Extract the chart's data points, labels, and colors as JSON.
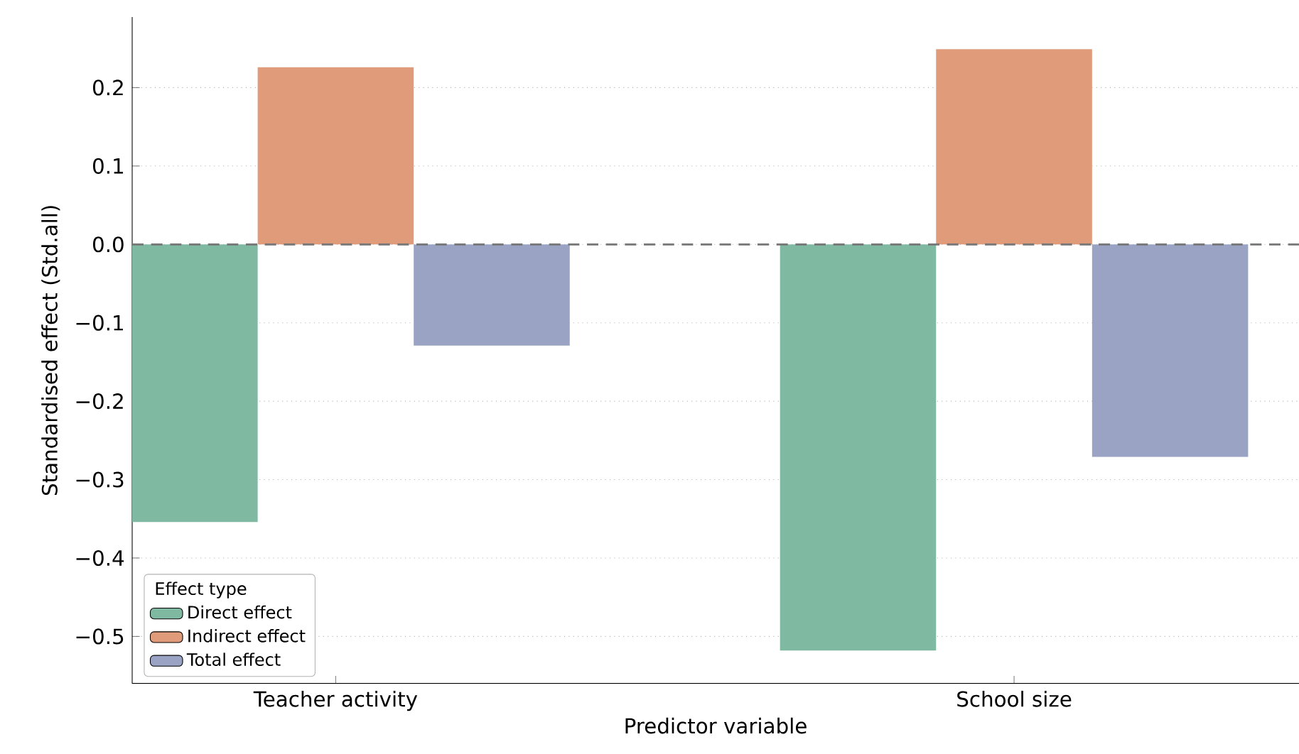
{
  "chart_data": {
    "type": "bar",
    "xlabel": "Predictor variable",
    "ylabel": "Standardised effect (Std.all)",
    "legend_title": "Effect type",
    "categories": [
      "Teacher activity",
      "School size"
    ],
    "series": [
      {
        "name": "Direct effect",
        "color": "#7fb9a2",
        "values": [
          -0.354,
          -0.518
        ]
      },
      {
        "name": "Indirect effect",
        "color": "#e09b7a",
        "values": [
          0.226,
          0.249
        ]
      },
      {
        "name": "Total effect",
        "color": "#9aa3c4",
        "values": [
          -0.129,
          -0.271
        ]
      }
    ],
    "ylim": [
      -0.56,
      0.29
    ],
    "yticks": [
      {
        "value": -0.5,
        "label": "−0.5"
      },
      {
        "value": -0.4,
        "label": "−0.4"
      },
      {
        "value": -0.3,
        "label": "−0.3"
      },
      {
        "value": -0.2,
        "label": "−0.2"
      },
      {
        "value": -0.1,
        "label": "−0.1"
      },
      {
        "value": 0,
        "label": "0.0"
      },
      {
        "value": 0.1,
        "label": "0.1"
      },
      {
        "value": 0.2,
        "label": "0.2"
      }
    ],
    "ref_lines": [
      {
        "axis": "y",
        "value": 0,
        "line_style": "dashed",
        "color": "#777777"
      }
    ],
    "grid": "y",
    "legend": "bottom left"
  }
}
